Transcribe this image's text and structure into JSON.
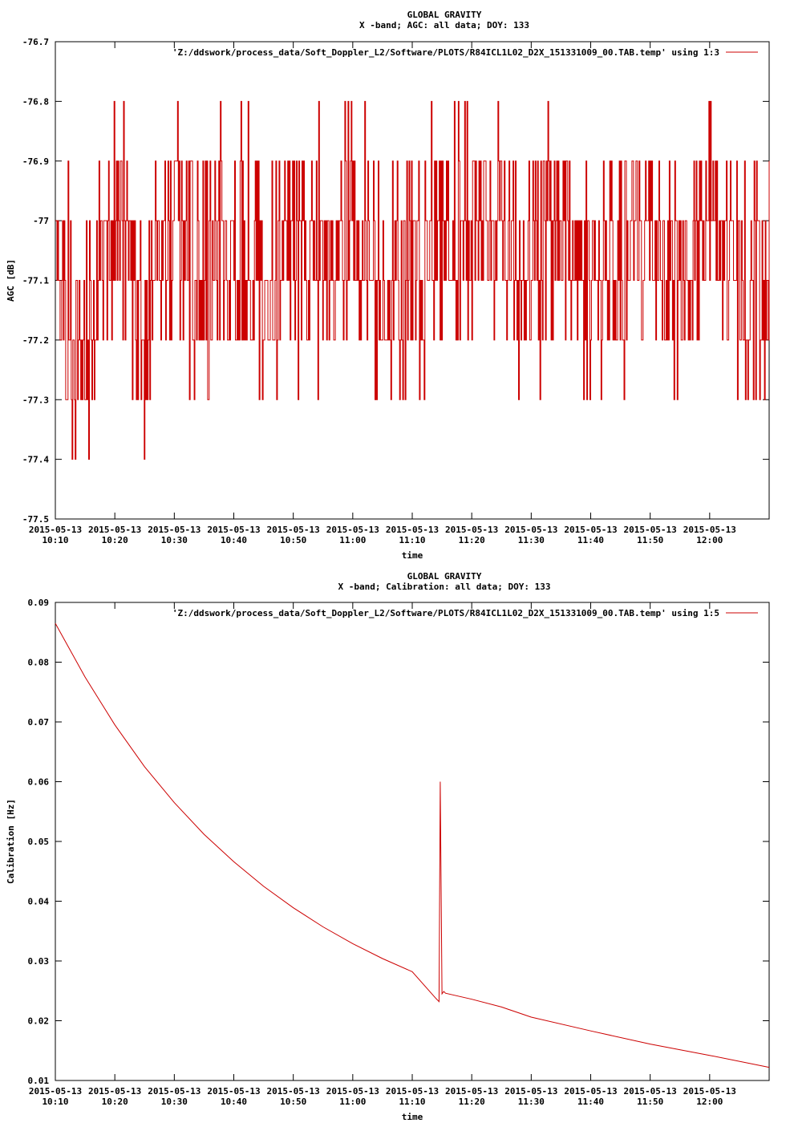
{
  "chart_data": [
    {
      "type": "line",
      "title": "GLOBAL GRAVITY",
      "subtitle": "X -band; AGC: all data; DOY: 133",
      "xlabel": "time",
      "ylabel": "AGC [dB]",
      "ylim": [
        -77.5,
        -76.7
      ],
      "yticks": [
        "-76.7",
        "-76.8",
        "-76.9",
        "-77",
        "-77.1",
        "-77.2",
        "-77.3",
        "-77.4",
        "-77.5"
      ],
      "ytick_values": [
        -76.7,
        -76.8,
        -76.9,
        -77.0,
        -77.1,
        -77.2,
        -77.3,
        -77.4,
        -77.5
      ],
      "x_range_minutes": [
        0,
        120
      ],
      "xtick_minutes": [
        0,
        10,
        20,
        30,
        40,
        50,
        60,
        70,
        80,
        90,
        100,
        110
      ],
      "xtick_date": "2015-05-13",
      "xtick_times": [
        "10:10",
        "10:20",
        "10:30",
        "10:40",
        "10:50",
        "11:00",
        "11:10",
        "11:20",
        "11:30",
        "11:40",
        "11:50",
        "12:00"
      ],
      "legend": "'Z:/ddswork/process_data/Soft_Doppler_L2/Software/PLOTS/R84ICL1L02_D2X_151331009_00.TAB.temp' using 1:3",
      "legend_position": "top-right",
      "grid": false,
      "color": "#cc0000",
      "series": [
        {
          "x": [
            0,
            5,
            10,
            15,
            20,
            25,
            30,
            35,
            40,
            45,
            50,
            55,
            60,
            65,
            70,
            75,
            80,
            85,
            90,
            95,
            100,
            105,
            110,
            115,
            120
          ],
          "y": [
            -77.1,
            -77.2,
            -77.0,
            -77.2,
            -77.0,
            -77.1,
            -77.0,
            -77.1,
            -77.0,
            -77.1,
            -77.0,
            -77.1,
            -77.1,
            -77.0,
            -77.0,
            -77.0,
            -77.1,
            -77.0,
            -77.1,
            -77.1,
            -77.0,
            -77.1,
            -77.0,
            -77.1,
            -77.1
          ]
        }
      ]
    },
    {
      "type": "line",
      "title": "GLOBAL GRAVITY",
      "subtitle": "X -band; Calibration: all data; DOY: 133",
      "xlabel": "time",
      "ylabel": "Calibration [Hz]",
      "ylim": [
        0.01,
        0.09
      ],
      "yticks": [
        "0.09",
        "0.08",
        "0.07",
        "0.06",
        "0.05",
        "0.04",
        "0.03",
        "0.02",
        "0.01"
      ],
      "ytick_values": [
        0.09,
        0.08,
        0.07,
        0.06,
        0.05,
        0.04,
        0.03,
        0.02,
        0.01
      ],
      "x_range_minutes": [
        0,
        120
      ],
      "xtick_minutes": [
        0,
        10,
        20,
        30,
        40,
        50,
        60,
        70,
        80,
        90,
        100,
        110
      ],
      "xtick_date": "2015-05-13",
      "xtick_times": [
        "10:10",
        "10:20",
        "10:30",
        "10:40",
        "10:50",
        "11:00",
        "11:10",
        "11:20",
        "11:30",
        "11:40",
        "11:50",
        "12:00"
      ],
      "legend": "'Z:/ddswork/process_data/Soft_Doppler_L2/Software/PLOTS/R84ICL1L02_D2X_151331009_00.TAB.temp' using 1:5",
      "legend_position": "top-right",
      "grid": false,
      "color": "#cc0000",
      "series": [
        {
          "x": [
            0,
            5,
            10,
            15,
            20,
            25,
            30,
            35,
            40,
            45,
            50,
            55,
            60,
            64,
            64.5,
            64.7,
            65,
            65.3,
            65.6,
            70,
            75,
            80,
            90,
            100,
            110,
            120
          ],
          "y": [
            0.0865,
            0.0775,
            0.0695,
            0.0625,
            0.0565,
            0.0512,
            0.0466,
            0.0425,
            0.0389,
            0.0357,
            0.0329,
            0.0304,
            0.0282,
            0.0237,
            0.0232,
            0.06,
            0.0245,
            0.0249,
            0.0246,
            0.0236,
            0.0223,
            0.0206,
            0.0183,
            0.0161,
            0.0142,
            0.0122
          ]
        }
      ]
    }
  ]
}
